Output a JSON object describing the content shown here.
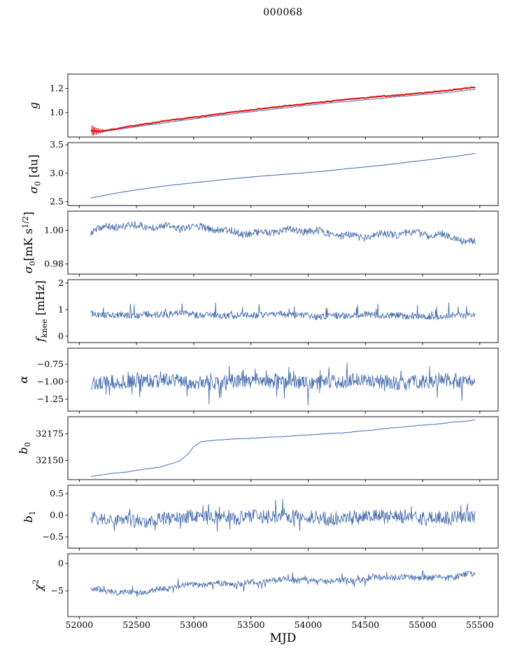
{
  "chart_data": {
    "type": "line",
    "title": "000068",
    "xlabel": "MJD",
    "xlim": [
      51900,
      55660
    ],
    "x_data_range": [
      52100,
      55460
    ],
    "xticks": [
      52000,
      52500,
      53000,
      53500,
      54000,
      54500,
      55000,
      55500
    ],
    "xtick_labels": [
      "52000",
      "52500",
      "53000",
      "53500",
      "54000",
      "54500",
      "55000",
      "55500"
    ],
    "grid": false,
    "legend": "none",
    "colors": {
      "line": "#4c72b0",
      "overlay": "#dd1616",
      "axis": "#000000"
    },
    "panels": [
      {
        "name": "g",
        "ylabel": [
          {
            "t": "g",
            "i": true
          }
        ],
        "ylim": [
          0.798,
          1.318
        ],
        "yticks": [
          1.0,
          1.2
        ],
        "ytick_labels": [
          "1.0",
          "1.2"
        ],
        "series": [
          {
            "name": "gain-fit-blue",
            "color": "line",
            "width": 1.0,
            "n": 500,
            "seed": 11,
            "noise": 0.0012,
            "wander": 0.0015,
            "trend": [
              [
                52100,
                0.846
              ],
              [
                52180,
                0.838
              ],
              [
                52300,
                0.855
              ],
              [
                52500,
                0.884
              ],
              [
                52800,
                0.923
              ],
              [
                53100,
                0.96
              ],
              [
                53400,
                0.996
              ],
              [
                53700,
                1.029
              ],
              [
                54000,
                1.06
              ],
              [
                54300,
                1.089
              ],
              [
                54600,
                1.115
              ],
              [
                54900,
                1.14
              ],
              [
                55200,
                1.164
              ],
              [
                55460,
                1.193
              ]
            ]
          },
          {
            "name": "gain-measured-red",
            "color": "overlay",
            "width": 2.2,
            "n": 320,
            "seed": 7,
            "noise": 0.003,
            "wander": 0.0015,
            "trend": [
              [
                52100,
                0.852
              ],
              [
                52180,
                0.845
              ],
              [
                52300,
                0.864
              ],
              [
                52500,
                0.895
              ],
              [
                52800,
                0.936
              ],
              [
                53100,
                0.974
              ],
              [
                53400,
                1.01
              ],
              [
                53700,
                1.043
              ],
              [
                54000,
                1.075
              ],
              [
                54300,
                1.104
              ],
              [
                54600,
                1.13
              ],
              [
                54900,
                1.155
              ],
              [
                55200,
                1.18
              ],
              [
                55460,
                1.21
              ]
            ],
            "errorbars": [
              {
                "x": 52112,
                "y": 0.853,
                "e": 0.04
              },
              {
                "x": 52124,
                "y": 0.846,
                "e": 0.034
              },
              {
                "x": 52136,
                "y": 0.85,
                "e": 0.03
              },
              {
                "x": 52150,
                "y": 0.845,
                "e": 0.027
              },
              {
                "x": 52165,
                "y": 0.848,
                "e": 0.024
              },
              {
                "x": 52182,
                "y": 0.846,
                "e": 0.02
              },
              {
                "x": 52200,
                "y": 0.85,
                "e": 0.017
              }
            ]
          }
        ]
      },
      {
        "name": "sigma0_du",
        "ylabel": [
          {
            "t": "σ",
            "i": true
          },
          {
            "t": "0",
            "s": "sub"
          },
          {
            "t": " [du]"
          }
        ],
        "ylim": [
          2.43,
          3.54
        ],
        "yticks": [
          2.5,
          3.0,
          3.5
        ],
        "ytick_labels": [
          "2.5",
          "3.0",
          "3.5"
        ],
        "series": [
          {
            "name": "sigma0-du",
            "color": "line",
            "width": 1.1,
            "n": 500,
            "seed": 23,
            "noise": 0.0015,
            "wander": 0.002,
            "trend": [
              [
                52100,
                2.565
              ],
              [
                52350,
                2.66
              ],
              [
                52600,
                2.735
              ],
              [
                52850,
                2.8
              ],
              [
                53100,
                2.855
              ],
              [
                53350,
                2.905
              ],
              [
                53600,
                2.95
              ],
              [
                53850,
                2.99
              ],
              [
                54100,
                3.03
              ],
              [
                54350,
                3.08
              ],
              [
                54600,
                3.13
              ],
              [
                54850,
                3.19
              ],
              [
                55100,
                3.25
              ],
              [
                55300,
                3.3
              ],
              [
                55460,
                3.35
              ]
            ]
          }
        ]
      },
      {
        "name": "sigma0_mK",
        "ylabel": [
          {
            "t": "σ",
            "i": true
          },
          {
            "t": "0",
            "s": "sub"
          },
          {
            "t": "[mK s"
          },
          {
            "t": "1/2",
            "s": "sup"
          },
          {
            "t": "]"
          }
        ],
        "ylim": [
          0.974,
          1.0115
        ],
        "yticks": [
          0.98,
          1.0
        ],
        "ytick_labels": [
          "0.98",
          "1.00"
        ],
        "series": [
          {
            "name": "white-noise-level",
            "color": "line",
            "width": 0.9,
            "n": 700,
            "seed": 37,
            "noise": 0.0022,
            "wander": 0.0022,
            "trend": [
              [
                52100,
                0.999
              ],
              [
                52400,
                1.002
              ],
              [
                52700,
                1.004
              ],
              [
                53000,
                1.001
              ],
              [
                53300,
                0.999
              ],
              [
                53700,
                1.0
              ],
              [
                54100,
                0.998
              ],
              [
                54500,
                0.9975
              ],
              [
                54900,
                0.997
              ],
              [
                55200,
                0.998
              ],
              [
                55460,
                0.9935
              ]
            ]
          }
        ]
      },
      {
        "name": "f_knee",
        "ylabel": [
          {
            "t": "f",
            "i": true
          },
          {
            "t": "knee",
            "s": "sub"
          },
          {
            "t": " [mHz]"
          }
        ],
        "ylim": [
          -0.24,
          2.13
        ],
        "yticks": [
          0,
          1,
          2
        ],
        "ytick_labels": [
          "0",
          "1",
          "2"
        ],
        "series": [
          {
            "name": "knee-frequency",
            "color": "line",
            "width": 0.9,
            "n": 700,
            "seed": 41,
            "noise": 0.13,
            "wander": 0.05,
            "spike": {
              "prob": 0.03,
              "amp": 0.5,
              "sign": 1
            },
            "trend": [
              [
                52100,
                0.82
              ],
              [
                53500,
                0.8
              ],
              [
                55460,
                0.75
              ]
            ]
          }
        ]
      },
      {
        "name": "alpha",
        "ylabel": [
          {
            "t": "α",
            "i": true
          }
        ],
        "ylim": [
          -1.42,
          -0.52
        ],
        "yticks": [
          -1.25,
          -1.0,
          -0.75
        ],
        "ytick_labels": [
          "−1.25",
          "−1.00",
          "−0.75"
        ],
        "series": [
          {
            "name": "noise-slope",
            "color": "line",
            "width": 0.9,
            "n": 700,
            "seed": 53,
            "noise": 0.1,
            "wander": 0.03,
            "spike": {
              "prob": 0.05,
              "amp": 0.22,
              "sign": 0
            },
            "trend": [
              [
                52100,
                -1.0
              ],
              [
                55460,
                -1.0
              ]
            ]
          }
        ]
      },
      {
        "name": "b0",
        "ylabel": [
          {
            "t": "b",
            "i": true
          },
          {
            "t": "0",
            "s": "sub"
          }
        ],
        "ylim": [
          32132,
          32191
        ],
        "yticks": [
          32150,
          32175
        ],
        "ytick_labels": [
          "32150",
          "32175"
        ],
        "series": [
          {
            "name": "baseline-offset",
            "color": "line",
            "width": 1.0,
            "n": 500,
            "seed": 61,
            "noise": 0.25,
            "wander": 0.3,
            "trend": [
              [
                52100,
                32135
              ],
              [
                52400,
                32139
              ],
              [
                52700,
                32144
              ],
              [
                52870,
                32149
              ],
              [
                52950,
                32156
              ],
              [
                53000,
                32163
              ],
              [
                53060,
                32167
              ],
              [
                53200,
                32169
              ],
              [
                53500,
                32171
              ],
              [
                53900,
                32173
              ],
              [
                54300,
                32176
              ],
              [
                54700,
                32180
              ],
              [
                55100,
                32184
              ],
              [
                55460,
                32188
              ]
            ]
          }
        ]
      },
      {
        "name": "b1",
        "ylabel": [
          {
            "t": "b",
            "i": true
          },
          {
            "t": "1",
            "s": "sub"
          }
        ],
        "ylim": [
          -0.758,
          0.694
        ],
        "yticks": [
          -0.5,
          0.0,
          0.5
        ],
        "ytick_labels": [
          "−0.5",
          "0.0",
          "0.5"
        ],
        "series": [
          {
            "name": "baseline-slope",
            "color": "line",
            "width": 0.9,
            "n": 700,
            "seed": 71,
            "noise": 0.16,
            "wander": 0.04,
            "spike": {
              "prob": 0.04,
              "amp": 0.3,
              "sign": 0
            },
            "trend": [
              [
                52100,
                -0.1
              ],
              [
                52600,
                -0.12
              ],
              [
                53000,
                -0.05
              ],
              [
                53500,
                -0.02
              ],
              [
                54000,
                -0.05
              ],
              [
                54500,
                -0.03
              ],
              [
                55000,
                -0.05
              ],
              [
                55460,
                -0.04
              ]
            ]
          }
        ]
      },
      {
        "name": "chi2",
        "ylabel": [
          {
            "t": "χ",
            "i": true
          },
          {
            "t": "2",
            "s": "sup"
          }
        ],
        "ylim": [
          -9.74,
          1.8
        ],
        "yticks": [
          -5,
          0
        ],
        "ytick_labels": [
          "−5",
          "0"
        ],
        "series": [
          {
            "name": "chi-square",
            "color": "line",
            "width": 0.9,
            "n": 700,
            "seed": 83,
            "noise": 0.55,
            "wander": 0.35,
            "spike": {
              "prob": 0.04,
              "amp": 1.2,
              "sign": 0
            },
            "trend": [
              [
                52100,
                -4.9
              ],
              [
                52350,
                -5.3
              ],
              [
                52600,
                -4.9
              ],
              [
                52900,
                -4.3
              ],
              [
                53200,
                -3.7
              ],
              [
                53600,
                -3.3
              ],
              [
                54000,
                -3.1
              ],
              [
                54400,
                -2.9
              ],
              [
                54800,
                -2.7
              ],
              [
                55100,
                -2.5
              ],
              [
                55460,
                -2.1
              ]
            ]
          }
        ]
      }
    ]
  }
}
